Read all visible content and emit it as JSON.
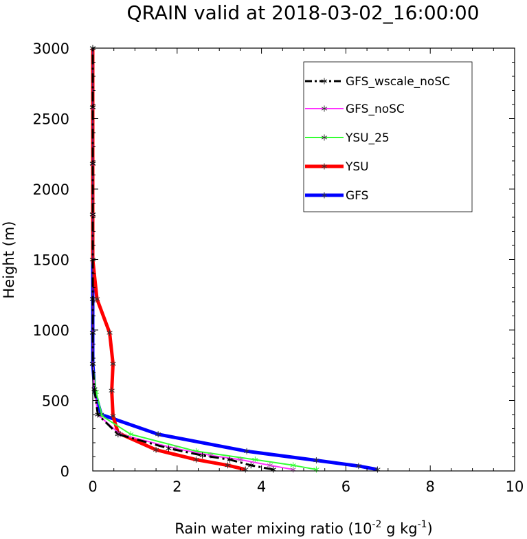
{
  "chart_data": {
    "type": "line",
    "title": "QRAIN valid at 2018-03-02_16:00:00",
    "xlabel": "Rain water mixing ratio (10",
    "xlabel_exp1": "-2",
    "xlabel_mid": " g kg",
    "xlabel_exp2": "-1",
    "xlabel_end": ")",
    "ylabel": "Height (m)",
    "xlim": [
      0,
      10
    ],
    "ylim": [
      0,
      3000
    ],
    "xticks": [
      0,
      2,
      4,
      6,
      8,
      10
    ],
    "yticks": [
      0,
      500,
      1000,
      1500,
      2000,
      2500,
      3000
    ],
    "grid": false,
    "legend_position": "top-right",
    "series": [
      {
        "name": "GFS_wscale_noSC",
        "color": "#000000",
        "dash": "dashed",
        "width": 3,
        "points": [
          [
            4.28,
            10
          ],
          [
            3.75,
            40
          ],
          [
            3.25,
            80
          ],
          [
            2.6,
            110
          ],
          [
            1.8,
            160
          ],
          [
            0.6,
            260
          ],
          [
            0.12,
            400
          ],
          [
            0.04,
            580
          ],
          [
            0.0,
            760
          ],
          [
            0.0,
            980
          ],
          [
            0.0,
            1220
          ],
          [
            0.0,
            1500
          ],
          [
            0.0,
            1820
          ],
          [
            0.0,
            2180
          ],
          [
            0.0,
            2580
          ],
          [
            0.0,
            3000
          ]
        ]
      },
      {
        "name": "GFS_noSC",
        "color": "#ff33ff",
        "dash": "solid",
        "width": 2,
        "points": [
          [
            4.75,
            10
          ],
          [
            4.2,
            40
          ],
          [
            3.5,
            80
          ],
          [
            2.8,
            110
          ],
          [
            1.95,
            160
          ],
          [
            0.65,
            260
          ],
          [
            0.12,
            400
          ],
          [
            0.04,
            580
          ],
          [
            0.0,
            760
          ],
          [
            0.0,
            980
          ],
          [
            0.0,
            1220
          ],
          [
            0.0,
            1500
          ],
          [
            0.0,
            1820
          ],
          [
            0.0,
            2180
          ],
          [
            0.0,
            2580
          ],
          [
            0.0,
            3000
          ]
        ]
      },
      {
        "name": "YSU_25",
        "color": "#33ff33",
        "dash": "solid",
        "width": 2,
        "points": [
          [
            5.3,
            10
          ],
          [
            4.75,
            40
          ],
          [
            3.85,
            80
          ],
          [
            2.45,
            140
          ],
          [
            0.9,
            260
          ],
          [
            0.22,
            390
          ],
          [
            0.08,
            560
          ],
          [
            0.0,
            760
          ],
          [
            0.0,
            980
          ],
          [
            0.0,
            1220
          ],
          [
            0.0,
            1500
          ],
          [
            0.0,
            1820
          ],
          [
            0.0,
            2180
          ],
          [
            0.0,
            2580
          ],
          [
            0.0,
            3000
          ]
        ]
      },
      {
        "name": "YSU",
        "color": "#ff0000",
        "dash": "solid",
        "width": 5,
        "points": [
          [
            3.62,
            10
          ],
          [
            3.2,
            40
          ],
          [
            2.45,
            80
          ],
          [
            1.5,
            150
          ],
          [
            0.6,
            270
          ],
          [
            0.48,
            390
          ],
          [
            0.45,
            570
          ],
          [
            0.48,
            760
          ],
          [
            0.4,
            980
          ],
          [
            0.1,
            1220
          ],
          [
            0.0,
            1500
          ],
          [
            0.0,
            1820
          ],
          [
            0.0,
            2180
          ],
          [
            0.0,
            2580
          ],
          [
            0.0,
            3000
          ]
        ]
      },
      {
        "name": "GFS",
        "color": "#0000ff",
        "dash": "solid",
        "width": 5,
        "points": [
          [
            6.75,
            10
          ],
          [
            6.3,
            35
          ],
          [
            5.3,
            75
          ],
          [
            3.65,
            140
          ],
          [
            1.55,
            260
          ],
          [
            0.2,
            400
          ],
          [
            0.05,
            560
          ],
          [
            0.0,
            760
          ],
          [
            0.0,
            980
          ],
          [
            0.0,
            1220
          ],
          [
            0.0,
            1500
          ],
          [
            0.0,
            1820
          ],
          [
            0.0,
            2180
          ],
          [
            0.0,
            2580
          ],
          [
            0.0,
            3000
          ]
        ]
      }
    ]
  }
}
